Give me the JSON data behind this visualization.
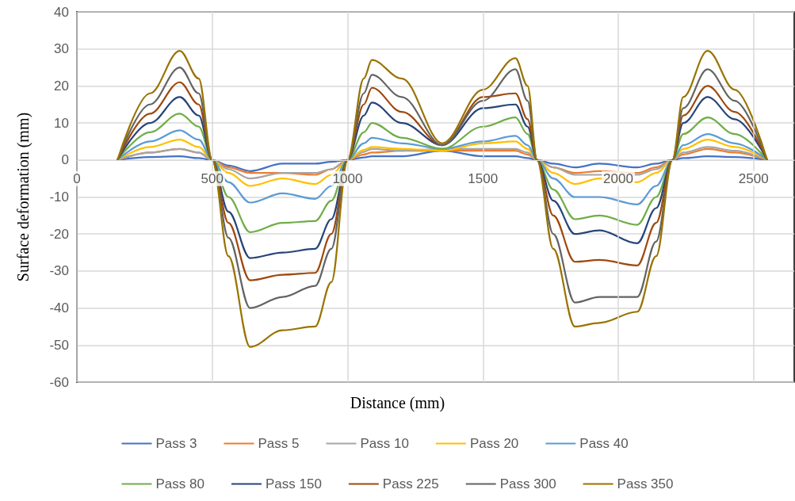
{
  "chart_data": {
    "type": "line",
    "xlabel": "Distance (mm)",
    "ylabel": "Surface deformation (mm)",
    "x": [
      150,
      270,
      380,
      450,
      500,
      560,
      640,
      760,
      880,
      940,
      1000,
      1060,
      1090,
      1200,
      1350,
      1500,
      1620,
      1665,
      1700,
      1760,
      1840,
      1930,
      2070,
      2140,
      2200,
      2240,
      2330,
      2430,
      2550
    ],
    "xlim": [
      0,
      2650
    ],
    "xticks": [
      0,
      500,
      1000,
      1500,
      2000,
      2500
    ],
    "ylim": [
      -60,
      40
    ],
    "yticks": [
      -60,
      -50,
      -40,
      -30,
      -20,
      -10,
      0,
      10,
      20,
      30,
      40
    ],
    "grid": true,
    "legend": "bottom",
    "marker": "none",
    "line_style": "solid",
    "series": [
      {
        "name": "Pass 3",
        "color": "#4472c4",
        "values": [
          0,
          0.8,
          1,
          0.5,
          0,
          -1.5,
          -3,
          -1,
          -1,
          -0.5,
          0,
          0.7,
          1,
          1,
          2.5,
          1,
          1,
          0.5,
          0,
          -1,
          -2,
          -1,
          -2,
          -1,
          0,
          0.5,
          1,
          0.8,
          0
        ]
      },
      {
        "name": "Pass 5",
        "color": "#ed7d31",
        "values": [
          0,
          2,
          3,
          2,
          0,
          -2,
          -3.5,
          -3.5,
          -4,
          -2.5,
          0,
          1.5,
          2,
          2.5,
          2.5,
          2.5,
          2.5,
          1.5,
          0,
          -2,
          -3.5,
          -3,
          -3.5,
          -2,
          0,
          1.5,
          3,
          2,
          0
        ]
      },
      {
        "name": "Pass 10",
        "color": "#a5a5a5",
        "values": [
          0,
          2,
          3,
          2,
          0,
          -2.5,
          -5,
          -3.5,
          -3.5,
          -2.5,
          0,
          2.2,
          3,
          2.5,
          3,
          3,
          3,
          2,
          0,
          -2,
          -4,
          -4,
          -4,
          -2.5,
          0,
          2,
          3.5,
          2.5,
          0
        ]
      },
      {
        "name": "Pass 20",
        "color": "#ffc000",
        "values": [
          0,
          3.5,
          5.5,
          3.5,
          0,
          -3.5,
          -7,
          -5,
          -6.5,
          -4,
          0,
          2.7,
          3.5,
          3,
          2.5,
          4.5,
          5,
          3,
          0,
          -3.5,
          -6.5,
          -5,
          -6,
          -3.5,
          0,
          3,
          5.5,
          3.5,
          0
        ]
      },
      {
        "name": "Pass 40",
        "color": "#5b9bd5",
        "values": [
          0,
          5,
          8,
          5.5,
          0,
          -6,
          -11.5,
          -9,
          -10.5,
          -7,
          0,
          4.5,
          6,
          4.5,
          3,
          5,
          6.5,
          4,
          0,
          -5,
          -10,
          -10,
          -12,
          -7,
          0,
          4,
          7,
          4.5,
          0
        ]
      },
      {
        "name": "Pass 80",
        "color": "#70ad47",
        "values": [
          0,
          7.5,
          12.5,
          9,
          0,
          -10,
          -19.5,
          -17,
          -16.5,
          -11,
          0,
          7.5,
          10,
          6,
          3,
          9,
          11.5,
          7,
          0,
          -8,
          -16,
          -15,
          -17.5,
          -10,
          0,
          7,
          11.5,
          7,
          0
        ]
      },
      {
        "name": "Pass 150",
        "color": "#264478",
        "values": [
          0,
          10,
          17,
          12,
          0,
          -14,
          -26.5,
          -25,
          -24,
          -16,
          0,
          12,
          15.5,
          10,
          4,
          14,
          15,
          9,
          0,
          -11,
          -20,
          -19,
          -22.5,
          -13,
          0,
          10,
          17,
          11,
          0
        ]
      },
      {
        "name": "Pass 225",
        "color": "#9e480e",
        "values": [
          0,
          12.5,
          21,
          15,
          0,
          -17,
          -32.5,
          -31,
          -30.5,
          -20,
          0,
          15,
          19.5,
          13,
          4,
          17,
          18,
          11,
          0,
          -15,
          -27.5,
          -27,
          -28.5,
          -17,
          0,
          12,
          20,
          13,
          0
        ]
      },
      {
        "name": "Pass 300",
        "color": "#636363",
        "values": [
          0,
          15,
          25,
          18,
          0,
          -21,
          -40,
          -37,
          -34,
          -24,
          0,
          18,
          23,
          17,
          4,
          16,
          24.5,
          16,
          0,
          -20,
          -38.5,
          -37,
          -37,
          -22,
          0,
          14,
          24.5,
          16,
          0
        ]
      },
      {
        "name": "Pass 350",
        "color": "#997300",
        "values": [
          0,
          18,
          29.5,
          22,
          0,
          -26,
          -50.5,
          -46,
          -45,
          -33,
          0,
          22,
          27,
          22,
          4.5,
          19,
          27.5,
          20,
          0,
          -24,
          -45,
          -44,
          -41,
          -26,
          0,
          17,
          29.5,
          19,
          0
        ]
      }
    ]
  }
}
